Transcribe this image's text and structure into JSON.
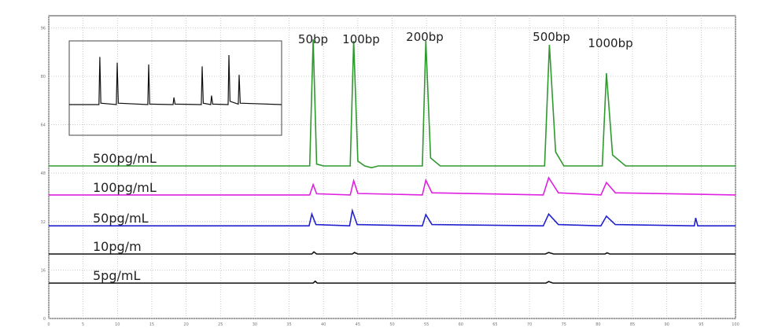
{
  "chart_data": [
    {
      "type": "line",
      "xlim": [
        0,
        100
      ],
      "ylim": [
        0,
        100
      ],
      "xticks": [
        0,
        5,
        10,
        15,
        20,
        25,
        30,
        35,
        40,
        45,
        50,
        55,
        60,
        65,
        70,
        75,
        80,
        85,
        90,
        95,
        100
      ],
      "yticks": [
        0,
        16,
        32,
        48,
        64,
        80,
        96
      ],
      "grid": true,
      "annotations": [
        "50bp",
        "100bp",
        "200bp",
        "500bp",
        "1000bp"
      ],
      "series": [
        {
          "name": "500pg/mL",
          "color": "#2e9a2e",
          "x": [
            0,
            38.0,
            38.5,
            39.0,
            40,
            43.9,
            44.4,
            45.0,
            46,
            47,
            48,
            54.4,
            54.9,
            55.6,
            57,
            72.2,
            72.9,
            73.8,
            75,
            80.6,
            81.2,
            82.1,
            84,
            100
          ],
          "values": [
            50.4,
            50.4,
            92.2,
            51,
            50.4,
            50.4,
            91.7,
            52,
            50.4,
            49.8,
            50.4,
            50.4,
            91.7,
            53,
            50.4,
            50.4,
            90.4,
            55,
            50.4,
            50.4,
            81,
            54,
            50.4,
            50.4
          ]
        },
        {
          "name": "100pg/mL",
          "color": "#e020e0",
          "x": [
            0,
            38.0,
            38.5,
            39.0,
            43.9,
            44.4,
            45.0,
            54.4,
            54.9,
            55.8,
            72.0,
            72.8,
            74.2,
            80.4,
            81.2,
            82.5,
            100
          ],
          "values": [
            40.8,
            40.8,
            44.2,
            41.2,
            40.8,
            45.5,
            41.3,
            40.8,
            45.7,
            41.5,
            40.8,
            46.5,
            41.5,
            40.8,
            44.9,
            41.5,
            40.8
          ]
        },
        {
          "name": "50pg/mL",
          "color": "#2222d0",
          "x": [
            0,
            37.9,
            38.3,
            38.9,
            43.8,
            44.2,
            44.9,
            54.4,
            54.9,
            55.8,
            72.0,
            72.8,
            74.2,
            80.4,
            81.2,
            82.5,
            94.0,
            94.2,
            94.5,
            100
          ],
          "values": [
            30.6,
            30.6,
            34.5,
            31,
            30.6,
            35.6,
            31,
            30.6,
            34.3,
            31,
            30.6,
            34.5,
            31,
            30.6,
            33.8,
            31,
            30.6,
            33.2,
            30.6,
            30.6
          ]
        },
        {
          "name": "10pg/m",
          "color": "#111111",
          "x": [
            0,
            38.3,
            38.6,
            39,
            44.2,
            44.5,
            45,
            72.3,
            72.8,
            73.5,
            81,
            81.3,
            81.7,
            100
          ],
          "values": [
            21.3,
            21.3,
            22,
            21.3,
            21.3,
            21.8,
            21.3,
            21.3,
            21.8,
            21.3,
            21.3,
            21.7,
            21.3,
            21.3
          ]
        },
        {
          "name": "5pg/mL",
          "color": "#111111",
          "x": [
            0,
            38.5,
            38.8,
            39.1,
            72.4,
            72.8,
            73.4,
            100
          ],
          "values": [
            11.7,
            11.7,
            12.3,
            11.7,
            11.7,
            12.2,
            11.7,
            11.7
          ]
        }
      ]
    },
    {
      "type": "line",
      "xlim": [
        0,
        100
      ],
      "ylim": [
        0,
        100
      ],
      "series": [
        {
          "color": "#111111",
          "x": [
            0,
            14.0,
            14.4,
            14.9,
            22.2,
            22.6,
            23.1,
            37.0,
            37.4,
            37.9,
            48.9,
            49.3,
            49.8,
            62.2,
            62.6,
            63.1,
            66.6,
            67.0,
            67.5,
            74.8,
            75.2,
            75.7,
            79.6,
            80.0,
            80.5,
            100
          ],
          "values": [
            32.5,
            32.5,
            83,
            34,
            32.5,
            77,
            34,
            32.5,
            75,
            33,
            32.5,
            40,
            33,
            32.5,
            73,
            34,
            32.5,
            42,
            33,
            32.5,
            85,
            36,
            33,
            64,
            34,
            32.5
          ]
        }
      ]
    }
  ]
}
